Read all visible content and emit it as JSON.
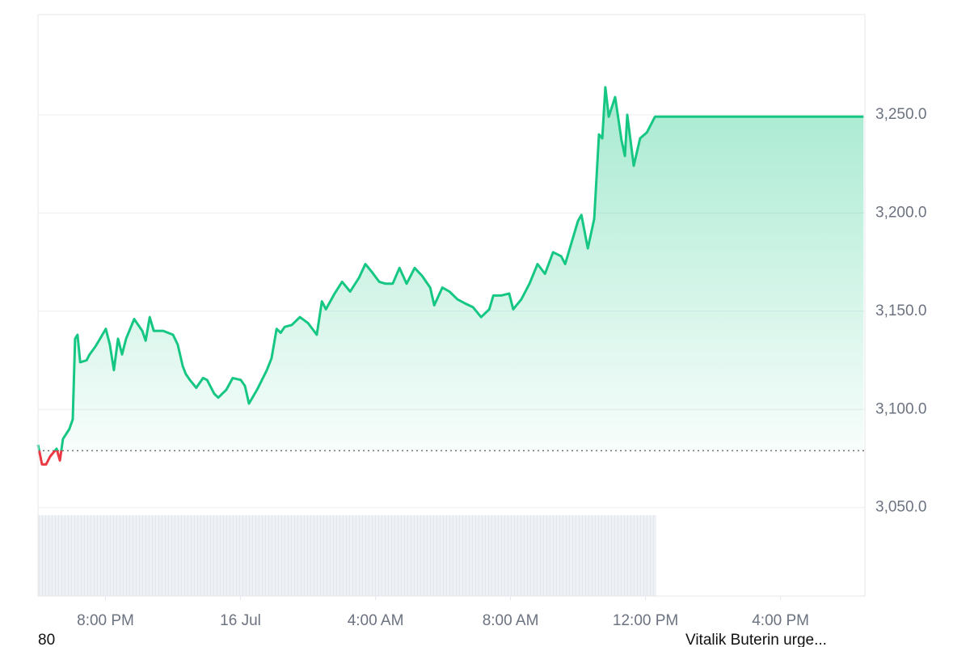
{
  "chart_data": {
    "type": "line",
    "x": [
      -6.0,
      -5.88,
      -5.76,
      -5.64,
      -5.45,
      -5.35,
      -5.26,
      -5.07,
      -4.97,
      -4.9,
      -4.83,
      -4.75,
      -4.56,
      -4.47,
      -4.3,
      -4.16,
      -3.99,
      -3.87,
      -3.75,
      -3.63,
      -3.51,
      -3.39,
      -3.15,
      -2.91,
      -2.81,
      -2.69,
      -2.57,
      -2.29,
      -2.0,
      -1.86,
      -1.71,
      -1.62,
      -1.5,
      -1.31,
      -1.11,
      -0.99,
      -0.78,
      -0.66,
      -0.42,
      -0.23,
      0.01,
      0.13,
      0.25,
      0.49,
      0.78,
      0.92,
      1.07,
      1.19,
      1.31,
      1.52,
      1.76,
      2.0,
      2.26,
      2.41,
      2.53,
      2.79,
      3.01,
      3.25,
      3.51,
      3.7,
      3.89,
      4.11,
      4.3,
      4.51,
      4.71,
      4.92,
      5.16,
      5.38,
      5.62,
      5.74,
      5.98,
      6.19,
      6.43,
      6.65,
      6.89,
      7.13,
      7.37,
      7.49,
      7.72,
      7.96,
      8.08,
      8.32,
      8.56,
      8.8,
      9.02,
      9.26,
      9.5,
      9.62,
      9.81,
      10.0,
      10.1,
      10.29,
      10.48,
      10.62,
      10.72,
      10.81,
      10.91,
      11.1,
      11.29,
      11.39,
      11.46,
      11.65,
      11.84,
      12.04,
      12.28,
      18.46
    ],
    "series": [
      {
        "color": "#16c784",
        "values": [
          3082,
          3072,
          3072,
          3076,
          3080,
          3074,
          3085,
          3090,
          3095,
          3136,
          3138,
          3124,
          3125,
          3128,
          3132,
          3136,
          3141,
          3133,
          3120,
          3136,
          3128,
          3136,
          3146,
          3140,
          3135,
          3147,
          3140,
          3140,
          3138,
          3133,
          3122,
          3118,
          3115,
          3111,
          3116,
          3115,
          3108,
          3106,
          3110,
          3116,
          3115,
          3112,
          3103,
          3110,
          3120,
          3126,
          3141,
          3139,
          3142,
          3143,
          3147,
          3144,
          3138,
          3155,
          3151,
          3159,
          3165,
          3160,
          3167,
          3174,
          3170,
          3165,
          3164,
          3164,
          3172,
          3164,
          3172,
          3168,
          3162,
          3153,
          3162,
          3160,
          3156,
          3154,
          3152,
          3147,
          3151,
          3158,
          3158,
          3159,
          3151,
          3156,
          3164,
          3174,
          3169,
          3180,
          3178,
          3174,
          3185,
          3196,
          3199,
          3182,
          3197,
          3240,
          3238,
          3264,
          3249,
          3259,
          3237,
          3229,
          3250,
          3224,
          3238,
          3241,
          3249,
          3249
        ]
      }
    ],
    "down_color": "#ea3943",
    "baseline": 3079,
    "xlim": [
      -6,
      18.5
    ],
    "ylim": [
      3005,
      3301
    ],
    "xticks": [
      {
        "value": -4,
        "label": "8:00 PM"
      },
      {
        "value": 0,
        "label": "16 Jul"
      },
      {
        "value": 4,
        "label": "4:00 AM"
      },
      {
        "value": 8,
        "label": "8:00 AM"
      },
      {
        "value": 12,
        "label": "12:00 PM"
      },
      {
        "value": 16,
        "label": "4:00 PM"
      }
    ],
    "yticks": [
      {
        "value": 3050,
        "label": "3,050.0"
      },
      {
        "value": 3100,
        "label": "3,100.0"
      },
      {
        "value": 3150,
        "label": "3,150.0"
      },
      {
        "value": 3200,
        "label": "3,200.0"
      },
      {
        "value": 3250,
        "label": "3,250.0"
      }
    ],
    "grid": true
  },
  "footer": {
    "left": "80",
    "right": "Vitalik Buterin urge..."
  }
}
